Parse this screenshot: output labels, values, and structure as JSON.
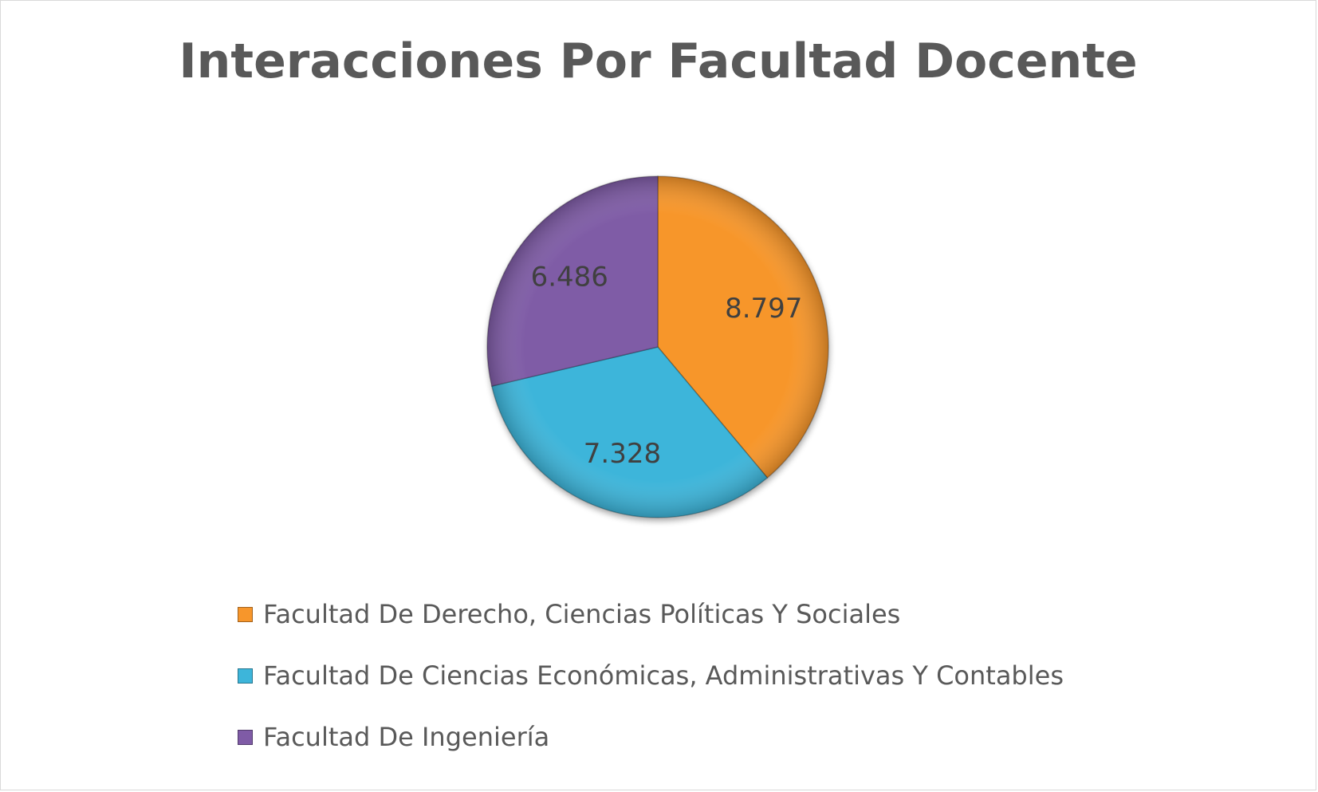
{
  "chart_data": {
    "type": "pie",
    "title": "Interacciones Por Facultad Docente",
    "legend_position": "bottom",
    "slices": [
      {
        "name": "Facultad De Derecho, Ciencias Políticas Y Sociales",
        "value": 8797,
        "label": "8.797",
        "color": "#F7962B"
      },
      {
        "name": "Facultad De Ciencias Económicas, Administrativas Y Contables",
        "value": 7328,
        "label": "7.328",
        "color": "#3DB5DA"
      },
      {
        "name": "Facultad De Ingeniería",
        "value": 6486,
        "label": "6.486",
        "color": "#7F5BA6"
      }
    ]
  }
}
